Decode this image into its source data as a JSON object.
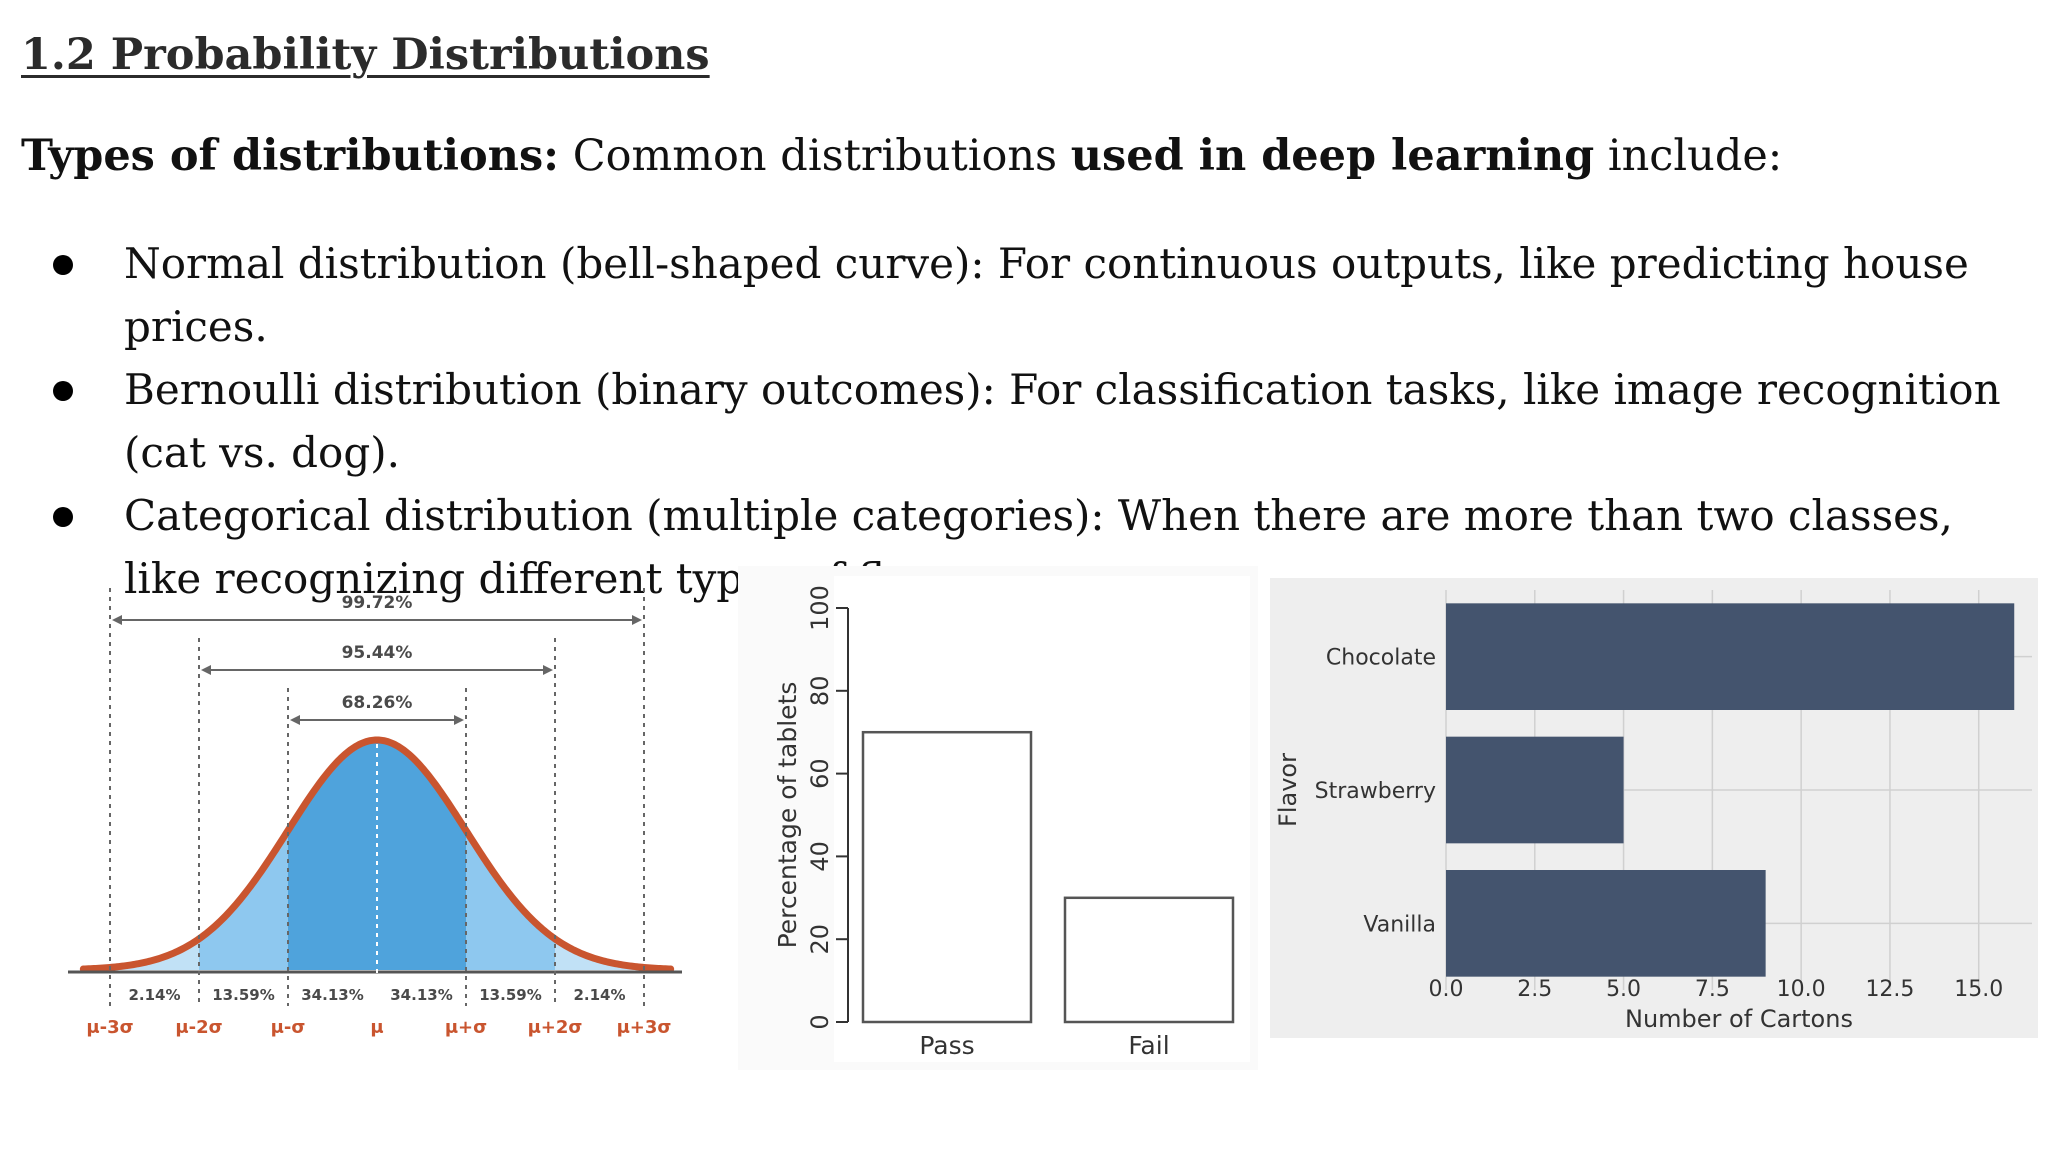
{
  "heading": "1.2 Probability Distributions",
  "intro": {
    "bold_lead": "Types of distributions:",
    "text_mid": " Common distributions ",
    "bold_mid": "used in deep learning",
    "text_end": " include:"
  },
  "bullets": [
    {
      "text": "Normal distribution (bell-shaped curve): For continuous outputs, like predicting house prices."
    },
    {
      "text": "Bernoulli distribution (binary outcomes): For classification tasks, like image recognition (cat vs. dog)."
    },
    {
      "text": "Categorical distribution (multiple categories): When there are more than two classes, like recognizing different types of flowers."
    }
  ],
  "normal_figure": {
    "colors": {
      "curve": "#c9552f",
      "inner": "#4fa3dc",
      "outer": "#8ec8ef",
      "text": "#4a4a4a",
      "sigma": "#c9552f"
    },
    "range_labels": [
      {
        "text": "99.72%",
        "from_sigma": -3,
        "to_sigma": 3
      },
      {
        "text": "95.44%",
        "from_sigma": -2,
        "to_sigma": 2
      },
      {
        "text": "68.26%",
        "from_sigma": -1,
        "to_sigma": 1
      }
    ],
    "band_percentages": [
      "2.14%",
      "13.59%",
      "34.13%",
      "34.13%",
      "13.59%",
      "2.14%"
    ],
    "sigma_labels": [
      "μ-3σ",
      "μ-2σ",
      "μ-σ",
      "μ",
      "μ+σ",
      "μ+2σ",
      "μ+3σ"
    ]
  },
  "chart_data": [
    {
      "type": "bar",
      "categories": [
        "Pass",
        "Fail"
      ],
      "values": [
        70,
        30
      ],
      "ylabel": "Percentage of tablets",
      "xlabel": "",
      "ylim": [
        0,
        100
      ],
      "yticks": [
        "0",
        "20",
        "40",
        "60",
        "80",
        "100"
      ],
      "bar_fill": "#ffffff",
      "bar_stroke": "#555555"
    },
    {
      "type": "bar",
      "orientation": "horizontal",
      "categories": [
        "Chocolate",
        "Strawberry",
        "Vanilla"
      ],
      "values": [
        16,
        5,
        9
      ],
      "xlabel": "Number of Cartons",
      "ylabel": "Flavor",
      "xlim": [
        0,
        16.5
      ],
      "xticks": [
        "0.0",
        "2.5",
        "5.0",
        "7.5",
        "10.0",
        "12.5",
        "15.0"
      ],
      "grid": true,
      "bar_color": "#44546e",
      "background": "#eeeeee"
    }
  ]
}
